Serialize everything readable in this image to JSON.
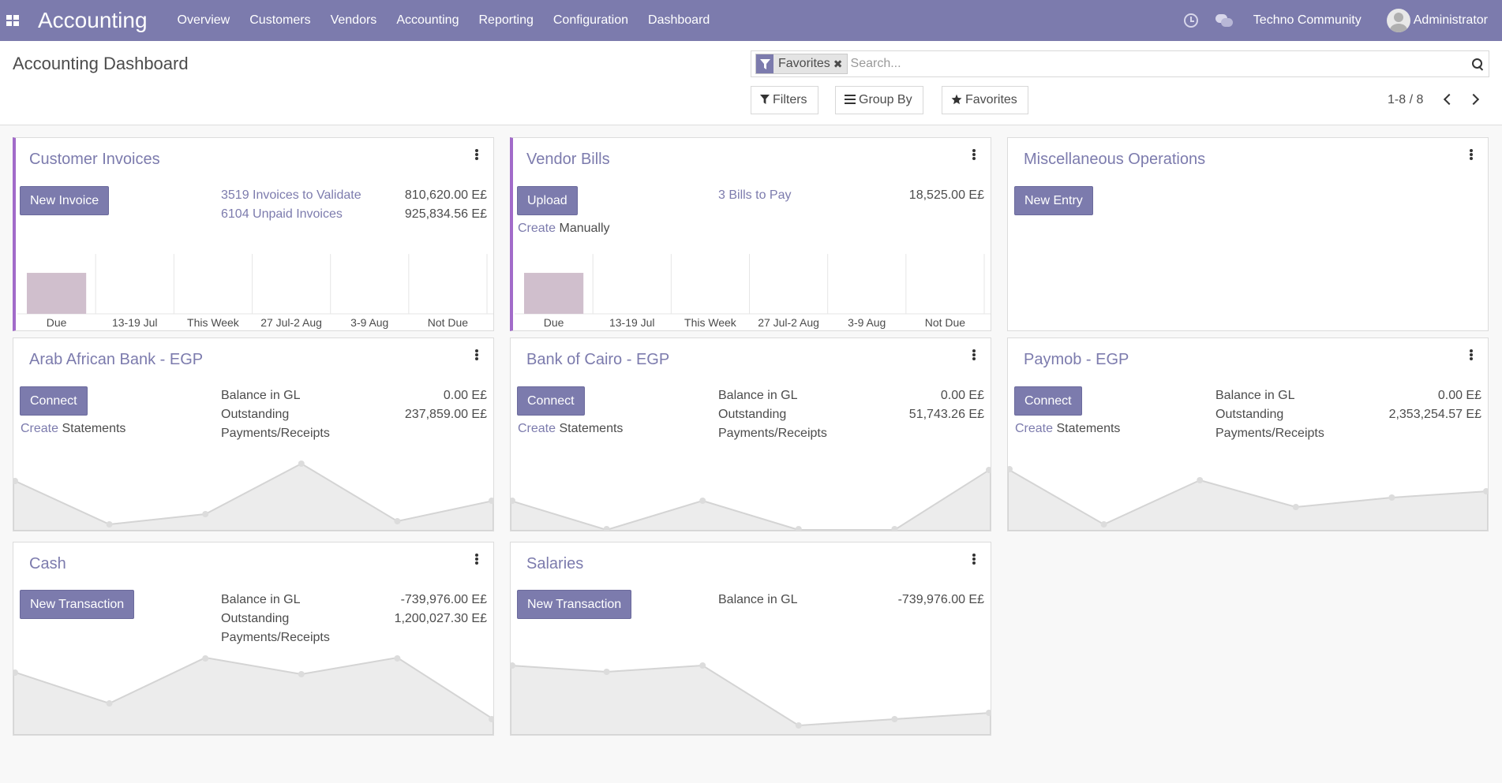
{
  "navbar": {
    "app_title": "Accounting",
    "menu": [
      "Overview",
      "Customers",
      "Vendors",
      "Accounting",
      "Reporting",
      "Configuration",
      "Dashboard"
    ],
    "company": "Techno Community",
    "user": "Administrator",
    "icons": [
      "apps-icon",
      "clock-icon",
      "chat-icon",
      "avatar"
    ]
  },
  "control_panel": {
    "title": "Accounting Dashboard",
    "search": {
      "facet": "Favorites",
      "placeholder": "Search..."
    },
    "buttons": {
      "filters": "Filters",
      "group_by": "Group By",
      "favorites": "Favorites"
    },
    "pager": "1-8 / 8"
  },
  "cards": {
    "customer_invoices": {
      "title": "Customer Invoices",
      "button": "New Invoice",
      "stats": [
        {
          "label": "3519 Invoices to Validate",
          "value": "810,620.00 E£"
        },
        {
          "label": "6104 Unpaid Invoices",
          "value": "925,834.56 E£"
        }
      ],
      "chart_labels": [
        "Due",
        "13-19 Jul",
        "This Week",
        "27 Jul-2 Aug",
        "3-9 Aug",
        "Not Due"
      ],
      "chart_values": [
        1,
        0,
        0,
        0,
        0,
        0
      ]
    },
    "vendor_bills": {
      "title": "Vendor Bills",
      "button": "Upload",
      "create_link": "Create",
      "create_text": "Manually",
      "stats": [
        {
          "label": "3 Bills to Pay",
          "value": "18,525.00 E£"
        }
      ],
      "chart_labels": [
        "Due",
        "13-19 Jul",
        "This Week",
        "27 Jul-2 Aug",
        "3-9 Aug",
        "Not Due"
      ],
      "chart_values": [
        1,
        0,
        0,
        0,
        0,
        0
      ]
    },
    "misc_operations": {
      "title": "Miscellaneous Operations",
      "button": "New Entry"
    },
    "arab_african_bank": {
      "title": "Arab African Bank - EGP",
      "button": "Connect",
      "create_link": "Create",
      "create_text": "Statements",
      "balance_label": "Balance in GL",
      "balance_value": "0.00 E£",
      "outstanding_label": "Outstanding",
      "outstanding_value": "237,859.00 E£",
      "payments_label": "Payments/Receipts"
    },
    "bank_of_cairo": {
      "title": "Bank of Cairo - EGP",
      "button": "Connect",
      "create_link": "Create",
      "create_text": "Statements",
      "balance_label": "Balance in GL",
      "balance_value": "0.00 E£",
      "outstanding_label": "Outstanding",
      "outstanding_value": "51,743.26 E£",
      "payments_label": "Payments/Receipts"
    },
    "paymob": {
      "title": "Paymob - EGP",
      "button": "Connect",
      "create_link": "Create",
      "create_text": "Statements",
      "balance_label": "Balance in GL",
      "balance_value": "0.00 E£",
      "outstanding_label": "Outstanding",
      "outstanding_value": "2,353,254.57 E£",
      "payments_label": "Payments/Receipts"
    },
    "cash": {
      "title": "Cash",
      "button": "New Transaction",
      "balance_label": "Balance in GL",
      "balance_value": "-739,976.00 E£",
      "outstanding_label": "Outstanding",
      "outstanding_value": "1,200,027.30 E£",
      "payments_label": "Payments/Receipts"
    },
    "salaries": {
      "title": "Salaries",
      "button": "New Transaction",
      "balance_label": "Balance in GL",
      "balance_value": "-739,976.00 E£"
    }
  },
  "colors": {
    "brand": "#7c7bad",
    "accent": "#a26bc9",
    "bar_fill": "#d0bfcd",
    "graph_fill": "#ececec",
    "graph_line": "#d8d8d8"
  }
}
